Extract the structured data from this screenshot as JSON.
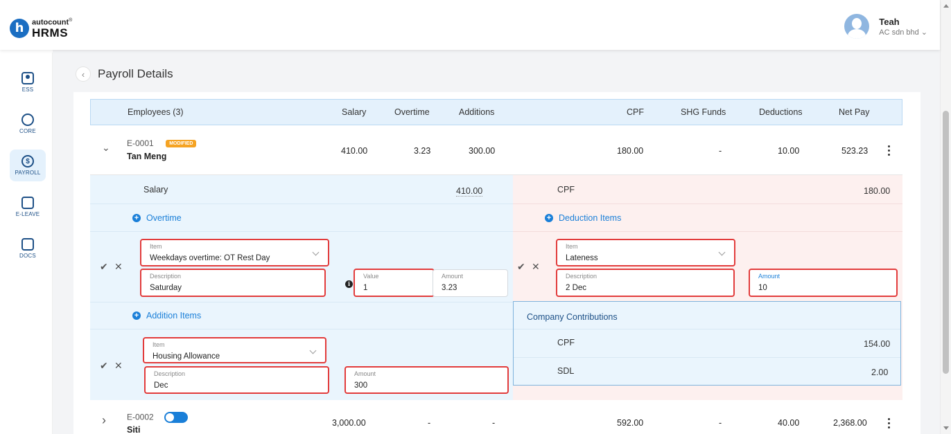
{
  "brand": {
    "logo_letter": "h",
    "top": "autocount",
    "tm": "®",
    "bottom": "HRMS"
  },
  "user": {
    "name": "Teah",
    "company": "AC sdn bhd ⌄"
  },
  "nav": [
    {
      "label": "ESS",
      "icon": "ess-icon"
    },
    {
      "label": "CORE",
      "icon": "core-icon"
    },
    {
      "label": "PAYROLL",
      "icon": "payroll-icon",
      "active": true
    },
    {
      "label": "E-LEAVE",
      "icon": "calendar-icon"
    },
    {
      "label": "DOCS",
      "icon": "docs-icon"
    }
  ],
  "page": {
    "back": "‹",
    "title": "Payroll Details"
  },
  "table": {
    "headers": {
      "employees": "Employees (3)",
      "salary": "Salary",
      "overtime": "Overtime",
      "additions": "Additions",
      "cpf": "CPF",
      "shg": "SHG Funds",
      "deductions": "Deductions",
      "netpay": "Net Pay"
    },
    "rows": [
      {
        "code": "E-0001",
        "badge": "MODIFIED",
        "name": "Tan Meng",
        "salary": "410.00",
        "overtime": "3.23",
        "additions": "300.00",
        "cpf": "180.00",
        "shg": "-",
        "deductions": "10.00",
        "netpay": "523.23",
        "chevron": "⌄"
      },
      {
        "code": "E-0002",
        "name": "Siti",
        "salary": "3,000.00",
        "overtime": "-",
        "additions": "-",
        "cpf": "592.00",
        "shg": "-",
        "deductions": "40.00",
        "netpay": "2,368.00",
        "chevron": "›"
      }
    ]
  },
  "detail": {
    "salary_label": "Salary",
    "salary_value": "410.00",
    "overtime_link": "Overtime",
    "overtime_form": {
      "item_label": "Item",
      "item_value": "Weekdays overtime: OT Rest Day",
      "desc_label": "Description",
      "desc_value": "Saturday",
      "value_label": "Value",
      "value_value": "1",
      "amount_label": "Amount",
      "amount_value": "3.23"
    },
    "addition_link": "Addition Items",
    "addition_form": {
      "item_label": "Item",
      "item_value": "Housing Allowance",
      "desc_label": "Description",
      "desc_value": "Dec",
      "amount_label": "Amount",
      "amount_value": "300"
    },
    "cpf_label": "CPF",
    "cpf_value": "180.00",
    "deduction_link": "Deduction Items",
    "deduction_form": {
      "item_label": "Item",
      "item_value": "Lateness",
      "desc_label": "Description",
      "desc_value": "2 Dec",
      "amount_label": "Amount",
      "amount_value": "10"
    },
    "company": {
      "title": "Company Contributions",
      "cpf_label": "CPF",
      "cpf_value": "154.00",
      "sdl_label": "SDL",
      "sdl_value": "2.00"
    },
    "confirm": "✔",
    "cancel": "✕",
    "info": "i",
    "plus": "+"
  }
}
